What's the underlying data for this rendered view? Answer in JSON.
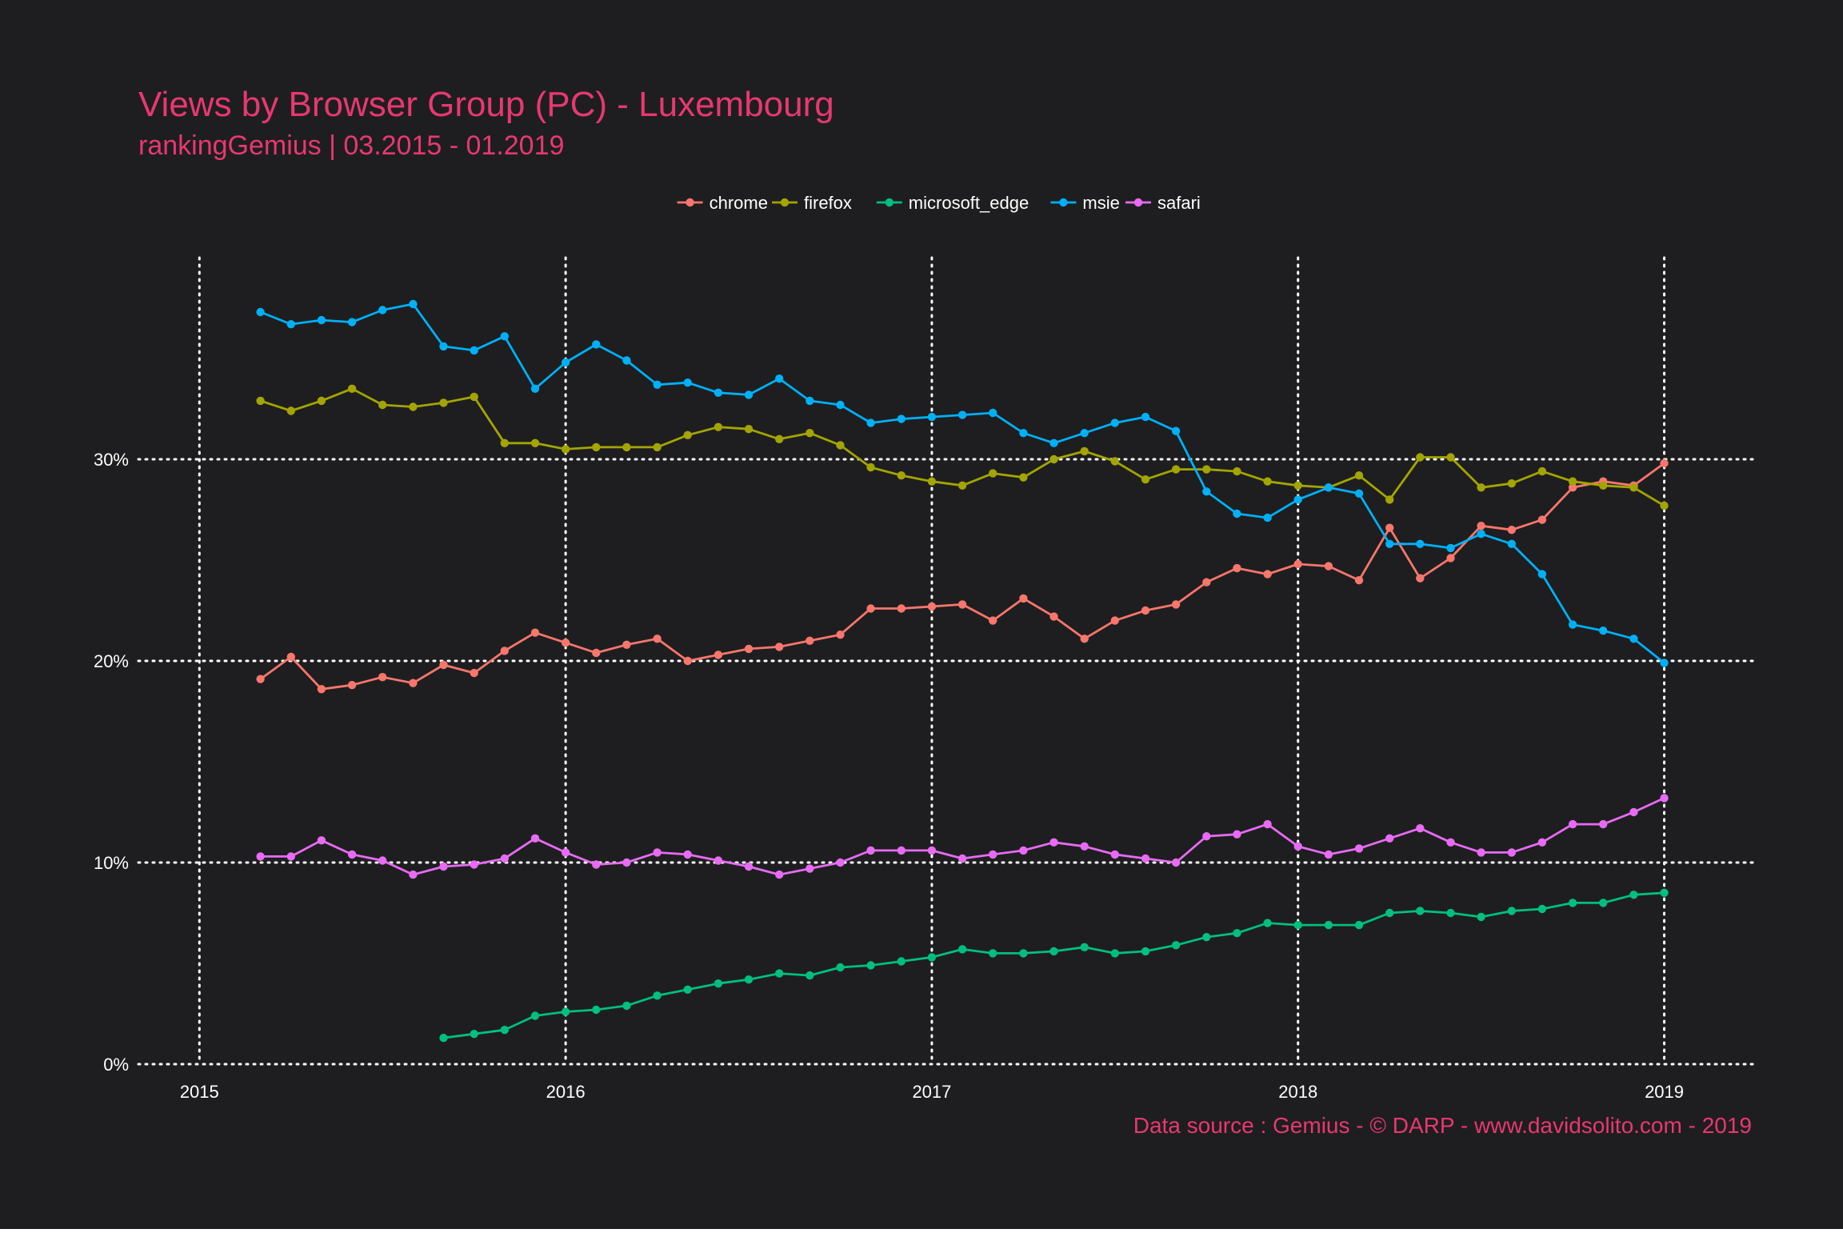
{
  "colors": {
    "background": "#1e1e20",
    "text_accent": "#e8386f",
    "axis_text": "#ffffff",
    "grid": "#ffffff"
  },
  "chart_data": {
    "type": "line",
    "title": "Views by Browser Group (PC) - Luxembourg",
    "subtitle": "rankingGemius | 03.2015 - 01.2019",
    "caption": "Data source : Gemius - © DARP - www.davidsolito.com - 2019",
    "xlabel": "",
    "ylabel": "",
    "x_ticks": [
      "2015",
      "2016",
      "2017",
      "2018",
      "2019"
    ],
    "y_ticks": [
      "0%",
      "10%",
      "20%",
      "30%"
    ],
    "xlim": [
      "2014-11",
      "2019-04"
    ],
    "ylim": [
      0,
      40
    ],
    "grid": true,
    "legend_position": "top",
    "x": [
      "2015-03",
      "2015-04",
      "2015-05",
      "2015-06",
      "2015-07",
      "2015-08",
      "2015-09",
      "2015-10",
      "2015-11",
      "2015-12",
      "2016-01",
      "2016-02",
      "2016-03",
      "2016-04",
      "2016-05",
      "2016-06",
      "2016-07",
      "2016-08",
      "2016-09",
      "2016-10",
      "2016-11",
      "2016-12",
      "2017-01",
      "2017-02",
      "2017-03",
      "2017-04",
      "2017-05",
      "2017-06",
      "2017-07",
      "2017-08",
      "2017-09",
      "2017-10",
      "2017-11",
      "2017-12",
      "2018-01",
      "2018-02",
      "2018-03",
      "2018-04",
      "2018-05",
      "2018-06",
      "2018-07",
      "2018-08",
      "2018-09",
      "2018-10",
      "2018-11",
      "2018-12",
      "2019-01"
    ],
    "series": [
      {
        "name": "chrome",
        "color": "#f8766d",
        "values": [
          19.1,
          20.2,
          18.6,
          18.8,
          19.2,
          18.9,
          19.8,
          19.4,
          20.5,
          21.4,
          20.9,
          20.4,
          20.8,
          21.1,
          20.0,
          20.3,
          20.6,
          20.7,
          21.0,
          21.3,
          22.6,
          22.6,
          22.7,
          22.8,
          22.0,
          23.1,
          22.2,
          21.1,
          22.0,
          22.5,
          22.8,
          23.9,
          24.6,
          24.3,
          24.8,
          24.7,
          24.0,
          26.6,
          24.1,
          25.1,
          26.7,
          26.5,
          27.0,
          28.6,
          28.9,
          28.7,
          29.8
        ]
      },
      {
        "name": "firefox",
        "color": "#a3a500",
        "values": [
          32.9,
          32.4,
          32.9,
          33.5,
          32.7,
          32.6,
          32.8,
          33.1,
          30.8,
          30.8,
          30.5,
          30.6,
          30.6,
          30.6,
          31.2,
          31.6,
          31.5,
          31.0,
          31.3,
          30.7,
          29.6,
          29.2,
          28.9,
          28.7,
          29.3,
          29.1,
          30.0,
          30.4,
          29.9,
          29.0,
          29.5,
          29.5,
          29.4,
          28.9,
          28.7,
          28.6,
          29.2,
          28.0,
          30.1,
          30.1,
          28.6,
          28.8,
          29.4,
          28.9,
          28.7,
          28.6,
          27.7
        ]
      },
      {
        "name": "microsoft_edge",
        "color": "#00bf7d",
        "values": [
          null,
          null,
          null,
          null,
          null,
          null,
          1.3,
          1.5,
          1.7,
          2.4,
          2.6,
          2.7,
          2.9,
          3.4,
          3.7,
          4.0,
          4.2,
          4.5,
          4.4,
          4.8,
          4.9,
          5.1,
          5.3,
          5.7,
          5.5,
          5.5,
          5.6,
          5.8,
          5.5,
          5.6,
          5.9,
          6.3,
          6.5,
          7.0,
          6.9,
          6.9,
          6.9,
          7.5,
          7.6,
          7.5,
          7.3,
          7.6,
          7.7,
          8.0,
          8.0,
          8.4,
          8.5
        ]
      },
      {
        "name": "msie",
        "color": "#00b0f6",
        "values": [
          37.3,
          36.7,
          36.9,
          36.8,
          37.4,
          37.7,
          35.6,
          35.4,
          36.1,
          33.5,
          34.8,
          35.7,
          34.9,
          33.7,
          33.8,
          33.3,
          33.2,
          34.0,
          32.9,
          32.7,
          31.8,
          32.0,
          32.1,
          32.2,
          32.3,
          31.3,
          30.8,
          31.3,
          31.8,
          32.1,
          31.4,
          28.4,
          27.3,
          27.1,
          28.0,
          28.6,
          28.3,
          25.8,
          25.8,
          25.6,
          26.3,
          25.8,
          24.3,
          21.8,
          21.5,
          21.1,
          19.9
        ]
      },
      {
        "name": "safari",
        "color": "#e76bf3",
        "values": [
          10.3,
          10.3,
          11.1,
          10.4,
          10.1,
          9.4,
          9.8,
          9.9,
          10.2,
          11.2,
          10.5,
          9.9,
          10.0,
          10.5,
          10.4,
          10.1,
          9.8,
          9.4,
          9.7,
          10.0,
          10.6,
          10.6,
          10.6,
          10.2,
          10.4,
          10.6,
          11.0,
          10.8,
          10.4,
          10.2,
          10.0,
          11.3,
          11.4,
          11.9,
          10.8,
          10.4,
          10.7,
          11.2,
          11.7,
          11.0,
          10.5,
          10.5,
          11.0,
          11.9,
          11.9,
          12.5,
          13.2
        ]
      }
    ]
  }
}
